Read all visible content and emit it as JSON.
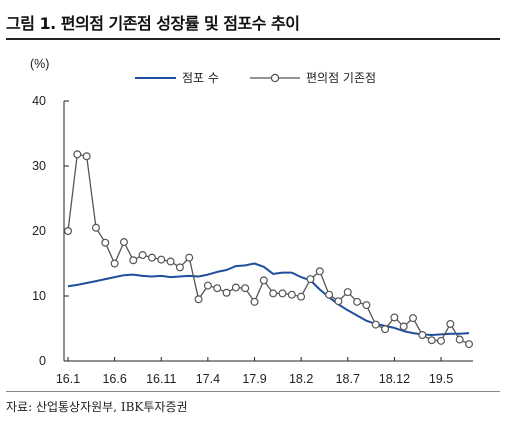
{
  "title": "그림 1. 편의점 기존점 성장률 및 점포수 추이",
  "source": "자료: 산업통상자원부, IBK투자증권",
  "chart_data": {
    "type": "line",
    "unit": "(%)",
    "ylim": [
      0,
      40
    ],
    "yticks": [
      "0",
      "10",
      "20",
      "30",
      "40"
    ],
    "xtick_labels": [
      "16.1",
      "16.6",
      "16.11",
      "17.4",
      "17.9",
      "18.2",
      "18.7",
      "18.12",
      "19.5"
    ],
    "x": [
      "16.1",
      "16.2",
      "16.3",
      "16.4",
      "16.5",
      "16.6",
      "16.7",
      "16.8",
      "16.9",
      "16.10",
      "16.11",
      "16.12",
      "17.1",
      "17.2",
      "17.3",
      "17.4",
      "17.5",
      "17.6",
      "17.7",
      "17.8",
      "17.9",
      "17.10",
      "17.11",
      "17.12",
      "18.1",
      "18.2",
      "18.3",
      "18.4",
      "18.5",
      "18.6",
      "18.7",
      "18.8",
      "18.9",
      "18.10",
      "18.11",
      "18.12",
      "19.1",
      "19.2",
      "19.3",
      "19.4",
      "19.5",
      "19.6",
      "19.7",
      "19.8"
    ],
    "legend_position": "top",
    "series": [
      {
        "name": "점포 수",
        "color": "#1f4e9c",
        "marker": "none",
        "values": [
          11.5,
          11.7,
          12.0,
          12.3,
          12.6,
          12.9,
          13.2,
          13.3,
          13.1,
          13.0,
          13.1,
          12.9,
          13.0,
          13.1,
          13.0,
          13.3,
          13.7,
          14.0,
          14.6,
          14.7,
          15.0,
          14.5,
          13.4,
          13.6,
          13.6,
          12.9,
          12.4,
          11.0,
          9.8,
          8.7,
          7.8,
          7.0,
          6.2,
          5.7,
          5.4,
          5.1,
          4.6,
          4.3,
          4.1,
          4.0,
          4.1,
          4.2,
          4.2,
          4.3
        ]
      },
      {
        "name": "편의점 기존점",
        "color": "#555555",
        "marker": "circle",
        "values": [
          20.0,
          31.8,
          31.5,
          20.5,
          18.2,
          15.0,
          18.3,
          15.5,
          16.3,
          15.9,
          15.6,
          15.3,
          14.4,
          15.9,
          9.5,
          11.6,
          11.2,
          10.5,
          11.3,
          11.2,
          9.1,
          12.4,
          10.4,
          10.4,
          10.2,
          9.9,
          12.6,
          13.8,
          10.2,
          9.2,
          10.6,
          9.1,
          8.6,
          5.6,
          4.9,
          6.7,
          5.3,
          6.6,
          4.0,
          3.2,
          3.1,
          5.7,
          3.3,
          2.6
        ]
      }
    ]
  }
}
